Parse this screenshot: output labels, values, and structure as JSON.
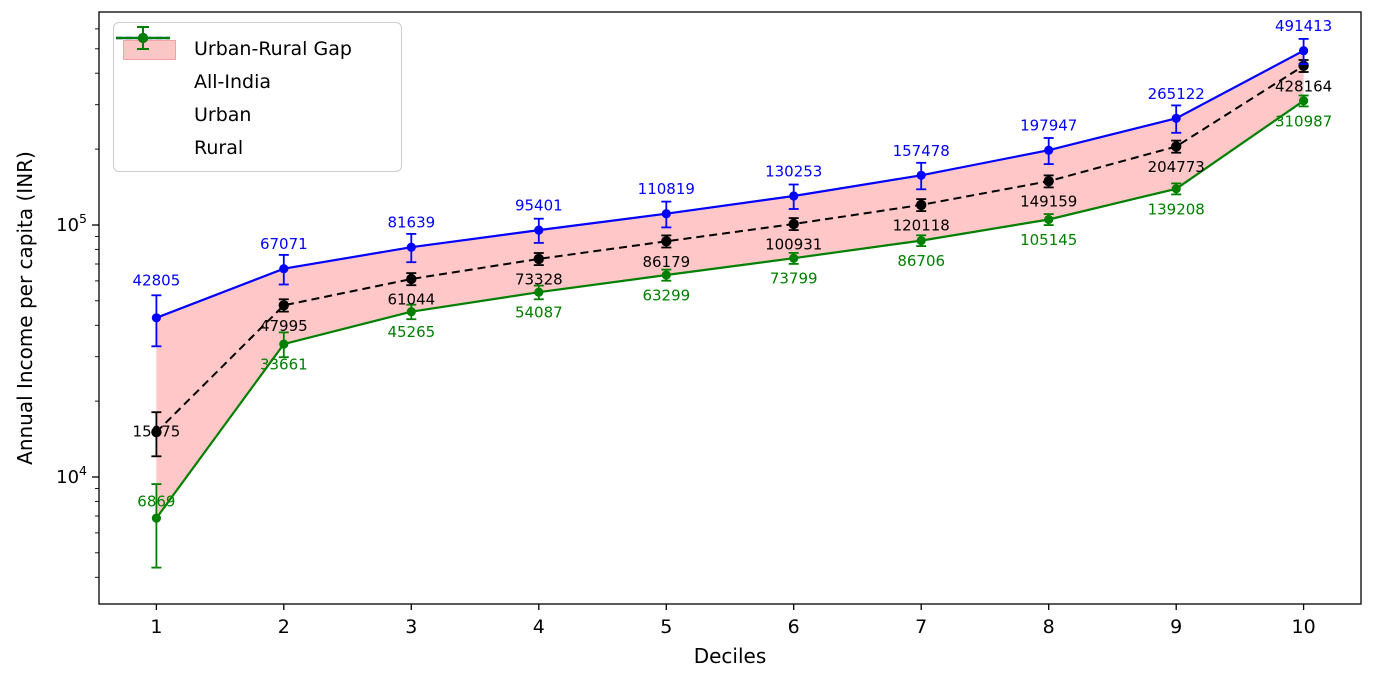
{
  "figure": {
    "xlabel": "Deciles",
    "ylabel": "Annual Income per capita (INR)"
  },
  "legend": {
    "items": [
      {
        "label": "Urban-Rural Gap",
        "type": "patch",
        "fill": "#fbc6c6",
        "edge": "#f2a2a2"
      },
      {
        "label": "All-India",
        "type": "errorbar",
        "color": "#000000",
        "bar_color": "#4d4d4d",
        "dashed": true
      },
      {
        "label": "Urban",
        "type": "errorbar",
        "color": "#0000ff",
        "bar_color": "#0000ff",
        "dashed": false
      },
      {
        "label": "Rural",
        "type": "errorbar",
        "color": "#008000",
        "bar_color": "#008000",
        "dashed": false
      }
    ]
  },
  "chart_data": {
    "type": "line",
    "xlabel": "Deciles",
    "ylabel": "Annual Income per capita (INR)",
    "yscale": "log",
    "x": [
      1,
      2,
      3,
      4,
      5,
      6,
      7,
      8,
      9,
      10
    ],
    "xtick_labels": [
      "1",
      "2",
      "3",
      "4",
      "5",
      "6",
      "7",
      "8",
      "9",
      "10"
    ],
    "ytick_labels": [
      {
        "mantissa": "10",
        "exponent": "4",
        "value": 10000
      },
      {
        "mantissa": "10",
        "exponent": "5",
        "value": 100000
      }
    ],
    "xlim": [
      0.55,
      10.45
    ],
    "ylim": [
      3133,
      700000
    ],
    "grid": false,
    "legend_position": "upper-left",
    "band": {
      "label": "Urban-Rural Gap",
      "between": [
        "Urban",
        "Rural"
      ],
      "fill": "rgba(255,0,0,0.22)"
    },
    "series": [
      {
        "name": "All-India",
        "color": "#000000",
        "linestyle": "dashed",
        "marker": "o",
        "values": [
          15075,
          47995,
          61044,
          73328,
          86179,
          100931,
          120118,
          149159,
          204773,
          428164
        ],
        "errors": [
          3000,
          2700,
          3350,
          4050,
          4750,
          5550,
          6600,
          8200,
          11300,
          23500
        ]
      },
      {
        "name": "Urban",
        "color": "#0000ff",
        "linestyle": "solid",
        "marker": "o",
        "values": [
          42805,
          67071,
          81639,
          95401,
          110819,
          130253,
          157478,
          197947,
          265122,
          491413
        ],
        "errors": [
          9800,
          9000,
          10500,
          10500,
          13000,
          14500,
          19000,
          23500,
          33000,
          56000
        ]
      },
      {
        "name": "Rural",
        "color": "#008000",
        "linestyle": "solid",
        "marker": "o",
        "values": [
          6869,
          33661,
          45265,
          54087,
          63299,
          73799,
          86706,
          105145,
          139208,
          310987
        ],
        "errors": [
          2500,
          3800,
          3000,
          3400,
          3200,
          3700,
          4300,
          5300,
          7000,
          15500
        ]
      }
    ]
  }
}
